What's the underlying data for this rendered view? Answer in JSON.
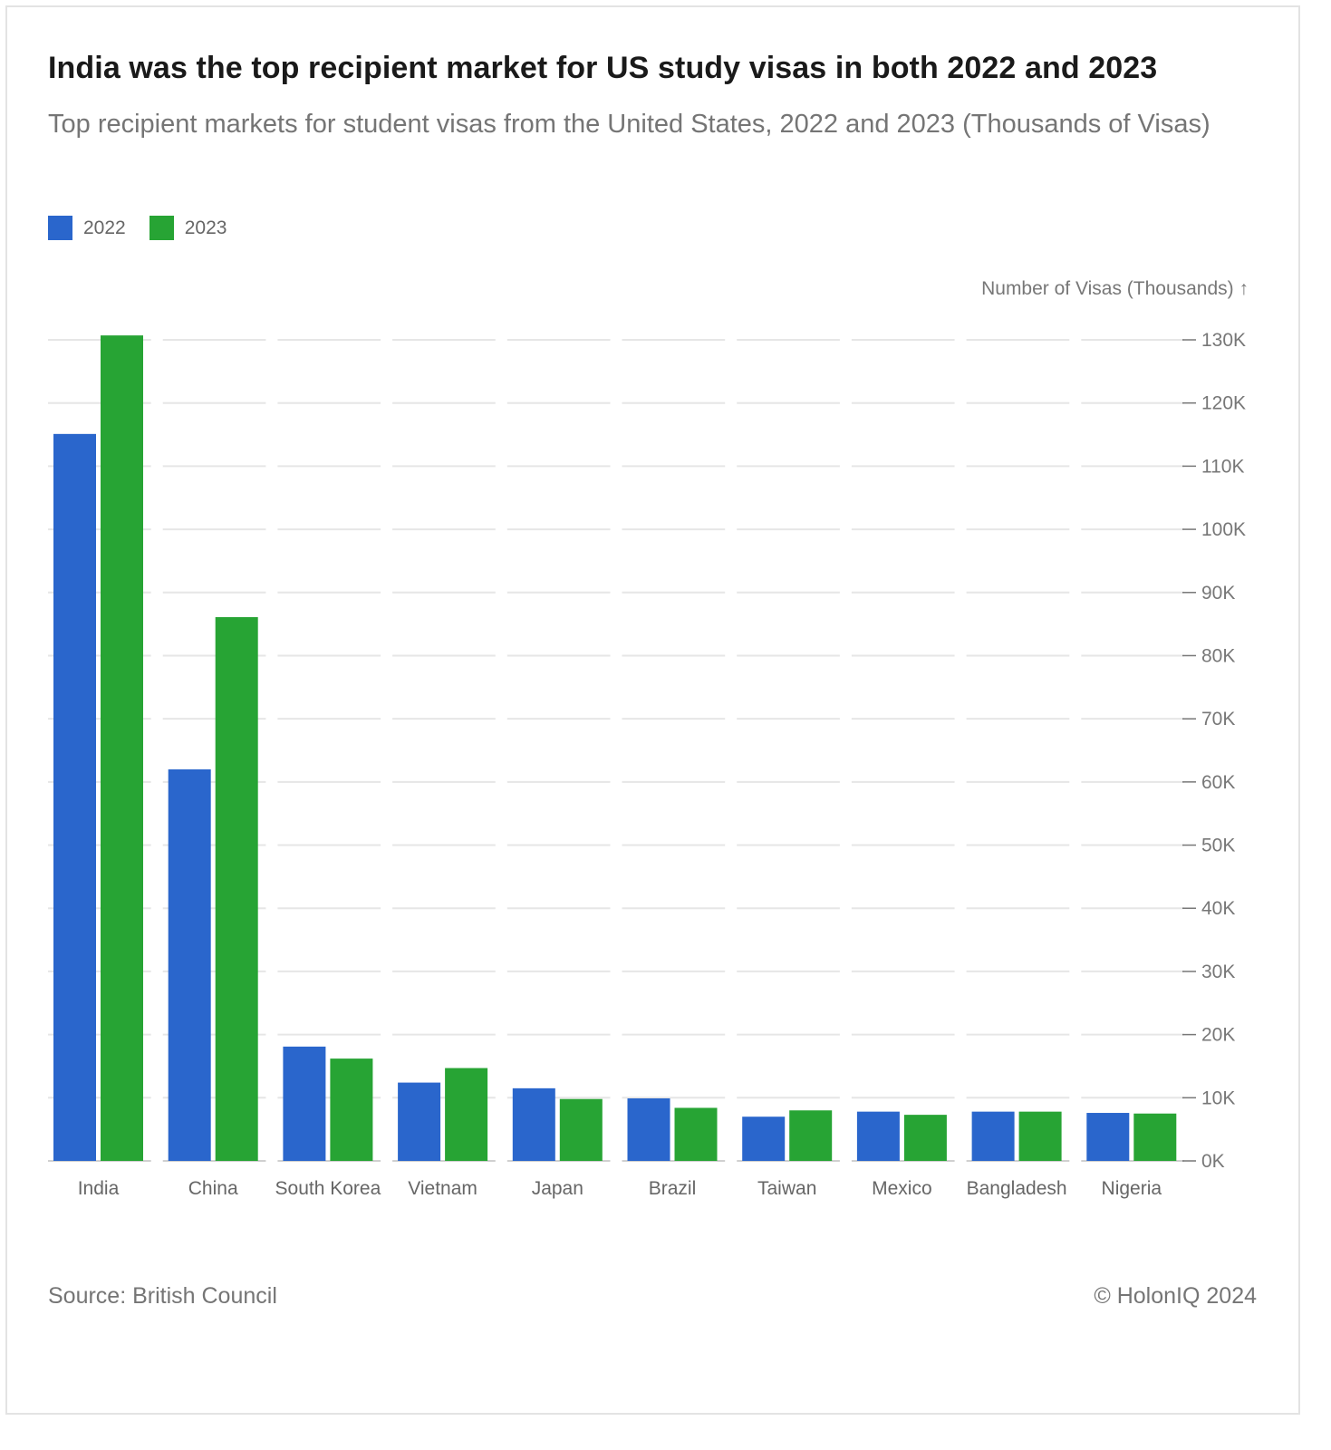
{
  "header": {
    "title": "India was the top recipient market for US study visas in both 2022 and 2023",
    "subtitle": "Top recipient markets for student visas from the United States, 2022 and 2023 (Thousands of Visas)"
  },
  "footer": {
    "source": "Source: British Council",
    "copyright": "© HolonIQ 2024"
  },
  "chart_data": {
    "type": "bar",
    "title": "India was the top recipient market for US study visas in both 2022 and 2023",
    "subtitle": "Top recipient markets for student visas from the United States, 2022 and 2023 (Thousands of Visas)",
    "xlabel": "",
    "ylabel": "Number of Visas (Thousands) ↑",
    "y_axis_side": "right",
    "ylim": [
      0,
      130
    ],
    "yticks": [
      "0K",
      "10K",
      "20K",
      "30K",
      "40K",
      "50K",
      "60K",
      "70K",
      "80K",
      "90K",
      "100K",
      "110K",
      "120K",
      "130K"
    ],
    "grid": true,
    "legend_position": "top-left",
    "categories": [
      "India",
      "China",
      "South Korea",
      "Vietnam",
      "Japan",
      "Brazil",
      "Taiwan",
      "Mexico",
      "Bangladesh",
      "Nigeria"
    ],
    "series": [
      {
        "name": "2022",
        "color": "#2a66cc",
        "values": [
          115.1,
          62.0,
          18.1,
          12.4,
          11.5,
          9.9,
          7.0,
          7.8,
          7.8,
          7.6
        ]
      },
      {
        "name": "2023",
        "color": "#27a434",
        "values": [
          130.7,
          86.1,
          16.2,
          14.7,
          9.8,
          8.4,
          8.0,
          7.3,
          7.8,
          7.5
        ]
      }
    ]
  }
}
